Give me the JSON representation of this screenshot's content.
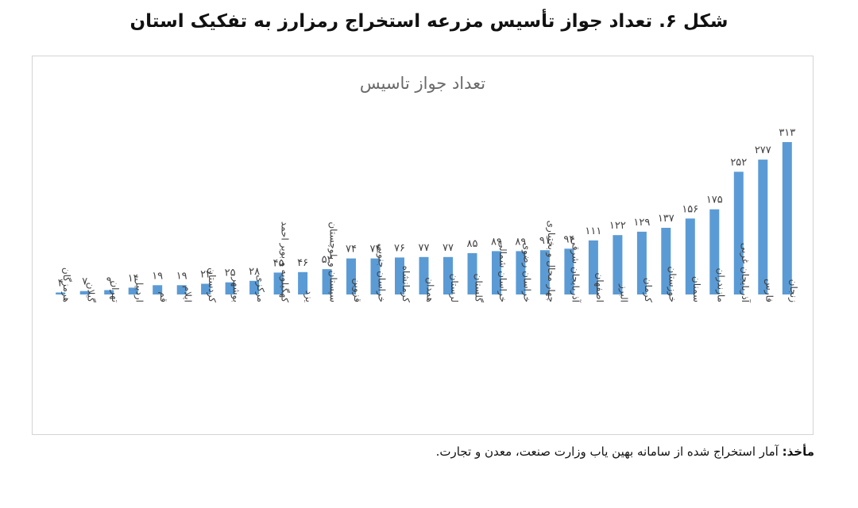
{
  "figure": {
    "caption": "شکل ۶. تعداد جواز تأسیس مزرعه استخراج رمزارز به تفکیک استان"
  },
  "source": {
    "label": "مأخذ:",
    "text": "آمار استخراج شده از سامانه بهین یاب وزارت صنعت، معدن و تجارت."
  },
  "colors": {
    "bar": "#5b9bd5",
    "label": "#404040"
  },
  "chart_data": {
    "type": "bar",
    "title": "تعداد جواز تاسیس",
    "xlabel": "",
    "ylabel": "",
    "ylim": [
      0,
      313
    ],
    "grid": false,
    "legend": "none",
    "categories": [
      "هرمزگان",
      "گیلان",
      "تهران",
      "اردبیل",
      "قم",
      "ایلام",
      "کردستان",
      "بوشهر",
      "مرکزی",
      "کهگیلویه و بویر احمد",
      "یزد",
      "سیستان و بلوچستان",
      "قزوین",
      "خراسان جنوبی",
      "کرمانشاه",
      "همدان",
      "لرستان",
      "گلستان",
      "خراسان شمالی",
      "خراسان رضوی",
      "چهار محال و بختیاری",
      "آذربایجان شرقی",
      "اصفهان",
      "البرز",
      "کرمان",
      "خوزستان",
      "سمنان",
      "مازندران",
      "آذربایجان غربی",
      "فارس",
      "زنجان"
    ],
    "values": [
      4,
      7,
      9,
      14,
      19,
      19,
      22,
      25,
      28,
      45,
      46,
      52,
      74,
      74,
      76,
      77,
      77,
      85,
      89,
      89,
      91,
      94,
      111,
      122,
      129,
      137,
      156,
      175,
      252,
      277,
      313
    ],
    "data_labels": [
      "۴",
      "۷",
      "۹",
      "۱۴",
      "۱۹",
      "۱۹",
      "۲۲",
      "۲۵",
      "۲۸",
      "۴۵",
      "۴۶",
      "۵۲",
      "۷۴",
      "۷۴",
      "۷۶",
      "۷۷",
      "۷۷",
      "۸۵",
      "۸۹",
      "۸۹",
      "۹۱",
      "۹۴",
      "۱۱۱",
      "۱۲۲",
      "۱۲۹",
      "۱۳۷",
      "۱۵۶",
      "۱۷۵",
      "۲۵۲",
      "۲۷۷",
      "۳۱۳"
    ]
  }
}
